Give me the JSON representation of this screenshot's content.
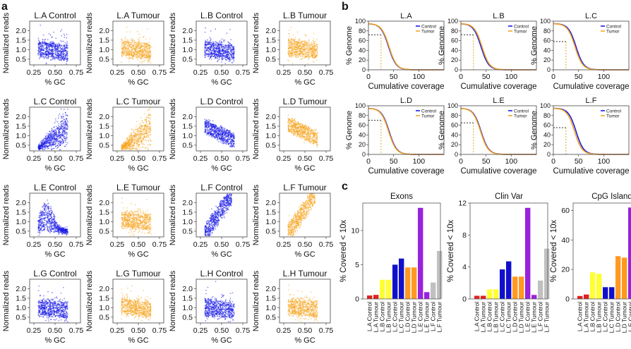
{
  "panel_letters": {
    "a": "a",
    "b": "b",
    "c": "c"
  },
  "chart_data": [
    {
      "panel": "a",
      "type": "scatter",
      "xlabel": "% GC",
      "ylabel": "Normalized reads",
      "xticks": [
        0.25,
        0.5,
        0.75
      ],
      "xtick_labels": [
        "0.25",
        "0.50",
        "0.75"
      ],
      "yticks": [
        0.5,
        1.0,
        1.5,
        2.0
      ],
      "ytick_labels": [
        "0.5",
        "1.0",
        "1.5",
        "2.0"
      ],
      "xlim": [
        0.2,
        0.8
      ],
      "ylim": [
        0.2,
        2.5
      ],
      "colors": {
        "control": "#1a1ae6",
        "tumour": "#f5a623"
      },
      "plots": [
        {
          "title": "L.A Control",
          "kind": "control",
          "pattern": "bands",
          "center": 0.95
        },
        {
          "title": "L.A Tumour",
          "kind": "tumour",
          "pattern": "bands",
          "center": 1.0
        },
        {
          "title": "L.B Control",
          "kind": "control",
          "pattern": "bands",
          "center": 0.95
        },
        {
          "title": "L.B Tumour",
          "kind": "tumour",
          "pattern": "bands",
          "center": 1.05
        },
        {
          "title": "L.C Control",
          "kind": "control",
          "pattern": "cone",
          "center": 1.0
        },
        {
          "title": "L.C Tumour",
          "kind": "tumour",
          "pattern": "cone",
          "center": 1.05
        },
        {
          "title": "L.D Control",
          "kind": "control",
          "pattern": "decline",
          "center": 0.9
        },
        {
          "title": "L.D Tumour",
          "kind": "tumour",
          "pattern": "decline",
          "center": 1.0
        },
        {
          "title": "L.E Control",
          "kind": "control",
          "pattern": "arch",
          "center": 1.0
        },
        {
          "title": "L.E Tumour",
          "kind": "tumour",
          "pattern": "bands",
          "center": 1.05
        },
        {
          "title": "L.F Control",
          "kind": "control",
          "pattern": "steep",
          "center": 1.2
        },
        {
          "title": "L.F Tumour",
          "kind": "tumour",
          "pattern": "steep",
          "center": 1.4
        },
        {
          "title": "L.G Control",
          "kind": "control",
          "pattern": "bands",
          "center": 0.95
        },
        {
          "title": "L.G Tumour",
          "kind": "tumour",
          "pattern": "bands",
          "center": 1.0
        },
        {
          "title": "L.H Control",
          "kind": "control",
          "pattern": "bands",
          "center": 0.95
        },
        {
          "title": "L.H Tumour",
          "kind": "tumour",
          "pattern": "bands",
          "center": 1.0
        }
      ]
    },
    {
      "panel": "b",
      "type": "line",
      "xlabel": "Cumulative coverage",
      "ylabel": "% Genome",
      "xlim": [
        0,
        150
      ],
      "ylim": [
        0,
        100
      ],
      "xticks": [
        0,
        50,
        100
      ],
      "xtick_labels": [
        "0",
        "50",
        "100"
      ],
      "yticks": [
        0,
        20,
        40,
        60,
        80,
        100
      ],
      "ytick_labels": [
        "0",
        "20",
        "40",
        "60",
        "80",
        "100"
      ],
      "legend_position": "top-right",
      "series_names": [
        "Control",
        "Tumor"
      ],
      "series_colors": {
        "Control": "#1a1ae6",
        "Tumor": "#f5a623"
      },
      "plots": [
        {
          "title": "L.A",
          "midpoints": [
            40,
            41
          ],
          "marker_x": 25,
          "marker_y": 72
        },
        {
          "title": "L.B",
          "midpoints": [
            40,
            42
          ],
          "marker_x": 25,
          "marker_y": 72
        },
        {
          "title": "L.C",
          "midpoints": [
            45,
            43
          ],
          "marker_x": 25,
          "marker_y": 58
        },
        {
          "title": "L.D",
          "midpoints": [
            41,
            40
          ],
          "marker_x": 25,
          "marker_y": 70
        },
        {
          "title": "L.E",
          "midpoints": [
            40,
            39
          ],
          "marker_x": 25,
          "marker_y": 65
        },
        {
          "title": "L.F",
          "midpoints": [
            45,
            42
          ],
          "marker_x": 25,
          "marker_y": 55
        }
      ]
    },
    {
      "panel": "c",
      "type": "bar",
      "ylabel": "% Covered < 10x",
      "categories": [
        "L.A Control",
        "L.A Tumour",
        "L.B Control",
        "L.B Tumour",
        "L.C Control",
        "L.C Tumour",
        "L.D Control",
        "L.D Tumour",
        "L.E Control",
        "L.E Tumour",
        "L.F Control",
        "L.F Tumour"
      ],
      "bar_colors": [
        "#e02020",
        "#e02020",
        "#ffff33",
        "#ffff33",
        "#1010cc",
        "#1010cc",
        "#ff9922",
        "#ff9922",
        "#9922dd",
        "#9922dd",
        "#c0c0c0",
        "#c0c0c0"
      ],
      "plots": [
        {
          "title": "Exons",
          "ylim": [
            0,
            14
          ],
          "yticks": [
            0,
            5,
            10
          ],
          "ytick_labels": [
            "0",
            "5",
            "10"
          ],
          "values": [
            0.5,
            0.6,
            2.8,
            2.8,
            5.0,
            5.9,
            4.6,
            4.6,
            13.3,
            1.0,
            2.4,
            7.0
          ]
        },
        {
          "title": "Clin Var",
          "ylim": [
            0,
            12
          ],
          "yticks": [
            0,
            4,
            8,
            12
          ],
          "ytick_labels": [
            "0",
            "4",
            "8",
            "12"
          ],
          "values": [
            0.4,
            0.4,
            1.2,
            1.2,
            3.7,
            4.7,
            2.8,
            2.8,
            11.4,
            0.5,
            2.3,
            6.3
          ]
        },
        {
          "title": "CpG Island",
          "ylim": [
            0,
            65
          ],
          "yticks": [
            0,
            20,
            40,
            60
          ],
          "ytick_labels": [
            "0",
            "20",
            "40",
            "60"
          ],
          "values": [
            2,
            3,
            18,
            17,
            8,
            8,
            29,
            28,
            62,
            4,
            12,
            30
          ]
        }
      ]
    }
  ]
}
